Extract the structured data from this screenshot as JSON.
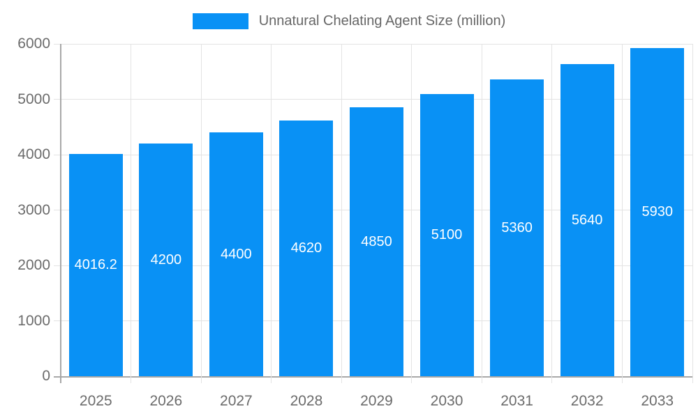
{
  "chart_data": {
    "type": "bar",
    "title": "",
    "series_label": "Unnatural Chelating Agent Size (million)",
    "categories": [
      "2025",
      "2026",
      "2027",
      "2028",
      "2029",
      "2030",
      "2031",
      "2032",
      "2033"
    ],
    "values": [
      4016.2,
      4200,
      4400,
      4620,
      4850,
      5100,
      5360,
      5640,
      5930
    ],
    "value_labels": [
      "4016.2",
      "4200",
      "4400",
      "4620",
      "4850",
      "5100",
      "5360",
      "5640",
      "5930"
    ],
    "xlabel": "",
    "ylabel": "",
    "ylim": [
      0,
      6000
    ],
    "yticks": [
      0,
      1000,
      2000,
      3000,
      4000,
      5000,
      6000
    ],
    "grid": true,
    "legend_position": "top-center",
    "colors": {
      "bar": "#0991f5",
      "grid": "#e3e3e3",
      "axis": "#a8a8a8",
      "tick_label": "#6b6b6b",
      "legend_label": "#666666",
      "value_label": "#ffffff",
      "background": "#ffffff"
    }
  }
}
